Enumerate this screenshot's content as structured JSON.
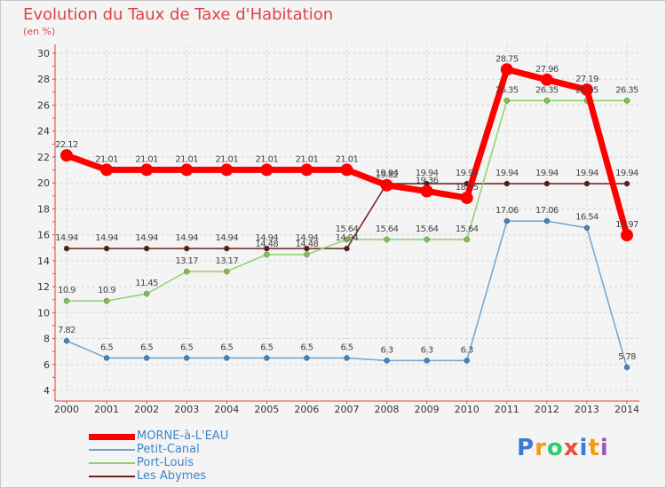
{
  "title": "Evolution du Taux de Taxe d'Habitation",
  "subtitle": "(en %)",
  "logo": {
    "letters": [
      "P",
      "r",
      "o",
      "x",
      "i",
      "t",
      "i"
    ],
    "colors": [
      "#3a7bd5",
      "#f39c12",
      "#2ecc71",
      "#e74c3c",
      "#3a7bd5",
      "#f39c12",
      "#9b59b6"
    ]
  },
  "chart_data": {
    "type": "line",
    "title": "Evolution du Taux de Taxe d'Habitation",
    "ylabel": "(en %)",
    "ylim": [
      4,
      30
    ],
    "yticks": [
      "4",
      "6",
      "8",
      "10",
      "12",
      "14",
      "16",
      "18",
      "20",
      "22",
      "24",
      "26",
      "28",
      "30"
    ],
    "grid": true,
    "x": [
      "2000",
      "2001",
      "2002",
      "2003",
      "2004",
      "2005",
      "2006",
      "2007",
      "2008",
      "2009",
      "2010",
      "2011",
      "2012",
      "2013",
      "2014"
    ],
    "legend_position": "bottom-left",
    "series": [
      {
        "name": "Les Abymes",
        "color": "#6b1f1f",
        "point_color": "#5a1a1a",
        "line_width": 1.5,
        "point_radius": 3,
        "values": [
          14.94,
          14.94,
          14.94,
          14.94,
          14.94,
          14.94,
          14.94,
          14.94,
          19.94,
          19.94,
          19.94,
          19.94,
          19.94,
          19.94,
          19.94
        ],
        "labels": [
          "14.94",
          "14.94",
          "14.94",
          "14.94",
          "14.94",
          "14.94",
          "14.94",
          "14.94",
          "19.94",
          "19.94",
          "19.94",
          "19.94",
          "19.94",
          "19.94",
          "19.94"
        ]
      },
      {
        "name": "Port-Louis",
        "color": "#8fd16a",
        "point_color": "#7ac943",
        "line_width": 1.5,
        "point_radius": 3,
        "values": [
          10.9,
          10.9,
          11.45,
          13.17,
          13.17,
          14.48,
          14.48,
          15.64,
          15.64,
          15.64,
          15.64,
          26.35,
          26.35,
          26.35,
          26.35
        ],
        "labels": [
          "10.9",
          "10.9",
          "11.45",
          "13.17",
          "13.17",
          "14.48",
          "14.48",
          "15.64",
          "15.64",
          "15.64",
          "15.64",
          "26.35",
          "26.35",
          "26.35",
          "26.35"
        ]
      },
      {
        "name": "Petit-Canal",
        "color": "#6fa4d4",
        "point_color": "#3d85c6",
        "line_width": 1.5,
        "point_radius": 3,
        "values": [
          7.82,
          6.5,
          6.5,
          6.5,
          6.5,
          6.5,
          6.5,
          6.5,
          6.3,
          6.3,
          6.3,
          17.06,
          17.06,
          16.54,
          5.78
        ],
        "labels": [
          "7.82",
          "6.5",
          "6.5",
          "6.5",
          "6.5",
          "6.5",
          "6.5",
          "6.5",
          "6.3",
          "6.3",
          "6.3",
          "17.06",
          "17.06",
          "16.54",
          "5.78"
        ]
      },
      {
        "name": "MORNE-à-L'EAU",
        "color": "#ff0000",
        "point_color": "#ff0000",
        "line_width": 7,
        "point_radius": 7,
        "values": [
          22.12,
          21.01,
          21.01,
          21.01,
          21.01,
          21.01,
          21.01,
          21.01,
          19.82,
          19.36,
          18.85,
          28.75,
          27.96,
          27.19,
          15.97
        ],
        "labels": [
          "22.12",
          "21.01",
          "21.01",
          "21.01",
          "21.01",
          "21.01",
          "21.01",
          "21.01",
          "19.82",
          "19.36",
          "18.85",
          "28.75",
          "27.96",
          "27.19",
          "15.97"
        ]
      }
    ],
    "legend": [
      {
        "name": "MORNE-à-L'EAU",
        "color": "#ff0000",
        "text_color": "#3d85c6",
        "width": 7
      },
      {
        "name": "Petit-Canal",
        "color": "#6fa4d4",
        "text_color": "#3d85c6",
        "width": 2
      },
      {
        "name": "Port-Louis",
        "color": "#8fd16a",
        "text_color": "#3d85c6",
        "width": 2
      },
      {
        "name": "Les Abymes",
        "color": "#6b1f1f",
        "text_color": "#3d85c6",
        "width": 2
      }
    ]
  }
}
